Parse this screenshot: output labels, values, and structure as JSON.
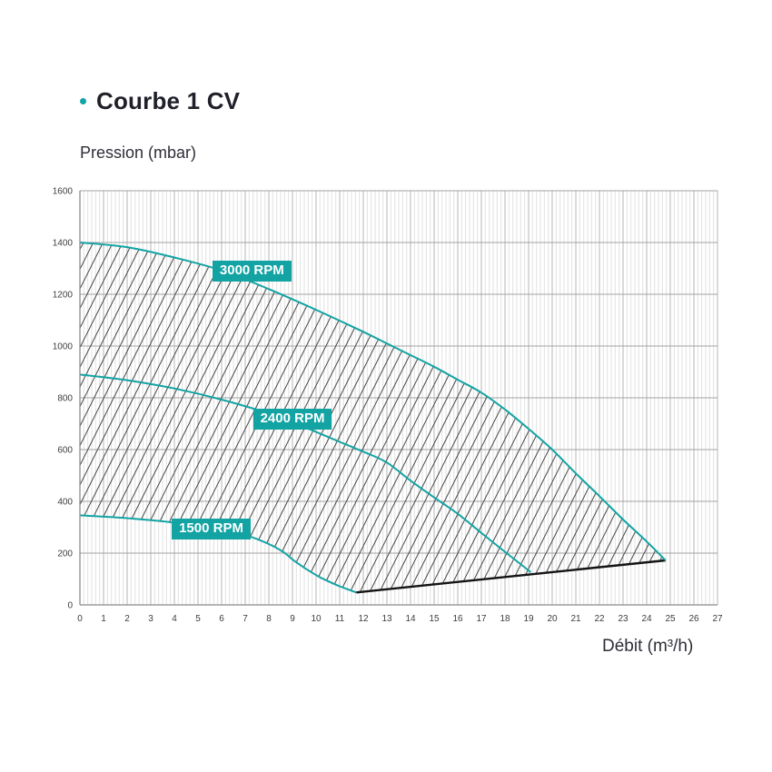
{
  "header": {
    "bullet_color": "#13a3a3"
  },
  "chart_data": {
    "type": "area",
    "title": "Courbe 1 CV",
    "ylabel": "Pression (mbar)",
    "xlabel": "Débit (m³/h)",
    "xlim": [
      0,
      27
    ],
    "ylim": [
      0,
      1600
    ],
    "x_tick_step": 1,
    "y_tick_step": 200,
    "x_minor_divisions": 6,
    "grid": "major x+y, minor x only",
    "legend_position": "inline badges on curves",
    "hatch_fill": {
      "description": "diagonal hatch between 3000 RPM curve and lower envelope (1500 RPM curve + boundary line)",
      "angle_deg": 63,
      "spacing_px": 10.8
    },
    "series": [
      {
        "name": "3000 RPM",
        "label_anchor": [
          5.61,
          1330
        ],
        "points": [
          [
            0,
            1400
          ],
          [
            2,
            1382
          ],
          [
            4,
            1342
          ],
          [
            6,
            1292
          ],
          [
            8,
            1220
          ],
          [
            10,
            1140
          ],
          [
            12,
            1055
          ],
          [
            13,
            1010
          ],
          [
            14,
            965
          ],
          [
            15,
            920
          ],
          [
            16,
            870
          ],
          [
            17,
            820
          ],
          [
            18,
            755
          ],
          [
            19,
            680
          ],
          [
            20,
            600
          ],
          [
            21,
            508
          ],
          [
            22,
            420
          ],
          [
            23,
            330
          ],
          [
            24,
            245
          ],
          [
            24.8,
            172
          ]
        ]
      },
      {
        "name": "2400 RPM",
        "label_anchor": [
          7.33,
          758
        ],
        "points": [
          [
            0,
            890
          ],
          [
            2,
            868
          ],
          [
            4,
            836
          ],
          [
            6,
            793
          ],
          [
            8,
            740
          ],
          [
            9,
            706
          ],
          [
            10,
            668
          ],
          [
            11,
            630
          ],
          [
            12,
            592
          ],
          [
            13,
            550
          ],
          [
            14,
            480
          ],
          [
            15,
            415
          ],
          [
            16,
            352
          ],
          [
            17,
            278
          ],
          [
            18,
            205
          ],
          [
            19.1,
            126
          ]
        ]
      },
      {
        "name": "1500 RPM",
        "label_anchor": [
          3.89,
          333
        ],
        "points": [
          [
            0,
            346
          ],
          [
            2,
            335
          ],
          [
            4,
            318
          ],
          [
            6,
            290
          ],
          [
            7,
            270
          ],
          [
            8,
            235
          ],
          [
            8.6,
            205
          ],
          [
            9.2,
            162
          ],
          [
            10,
            115
          ],
          [
            10.5,
            92
          ],
          [
            11,
            72
          ],
          [
            11.7,
            48
          ]
        ]
      }
    ],
    "boundary_line": {
      "name": "max-flow boundary",
      "points": [
        [
          11.7,
          48
        ],
        [
          24.8,
          172
        ]
      ]
    },
    "colors": {
      "curve": "#13a3a3",
      "badge_bg": "#13a3a3",
      "badge_text": "#ffffff",
      "hatch": "#474747",
      "boundary": "#141414",
      "grid_minor": "#e1e1e1",
      "grid_major_x": "#b5b5b5",
      "grid_major_y": "#a3a3a3",
      "axis": "#8a8a8a",
      "tick_text": "#3d3d3d"
    }
  }
}
